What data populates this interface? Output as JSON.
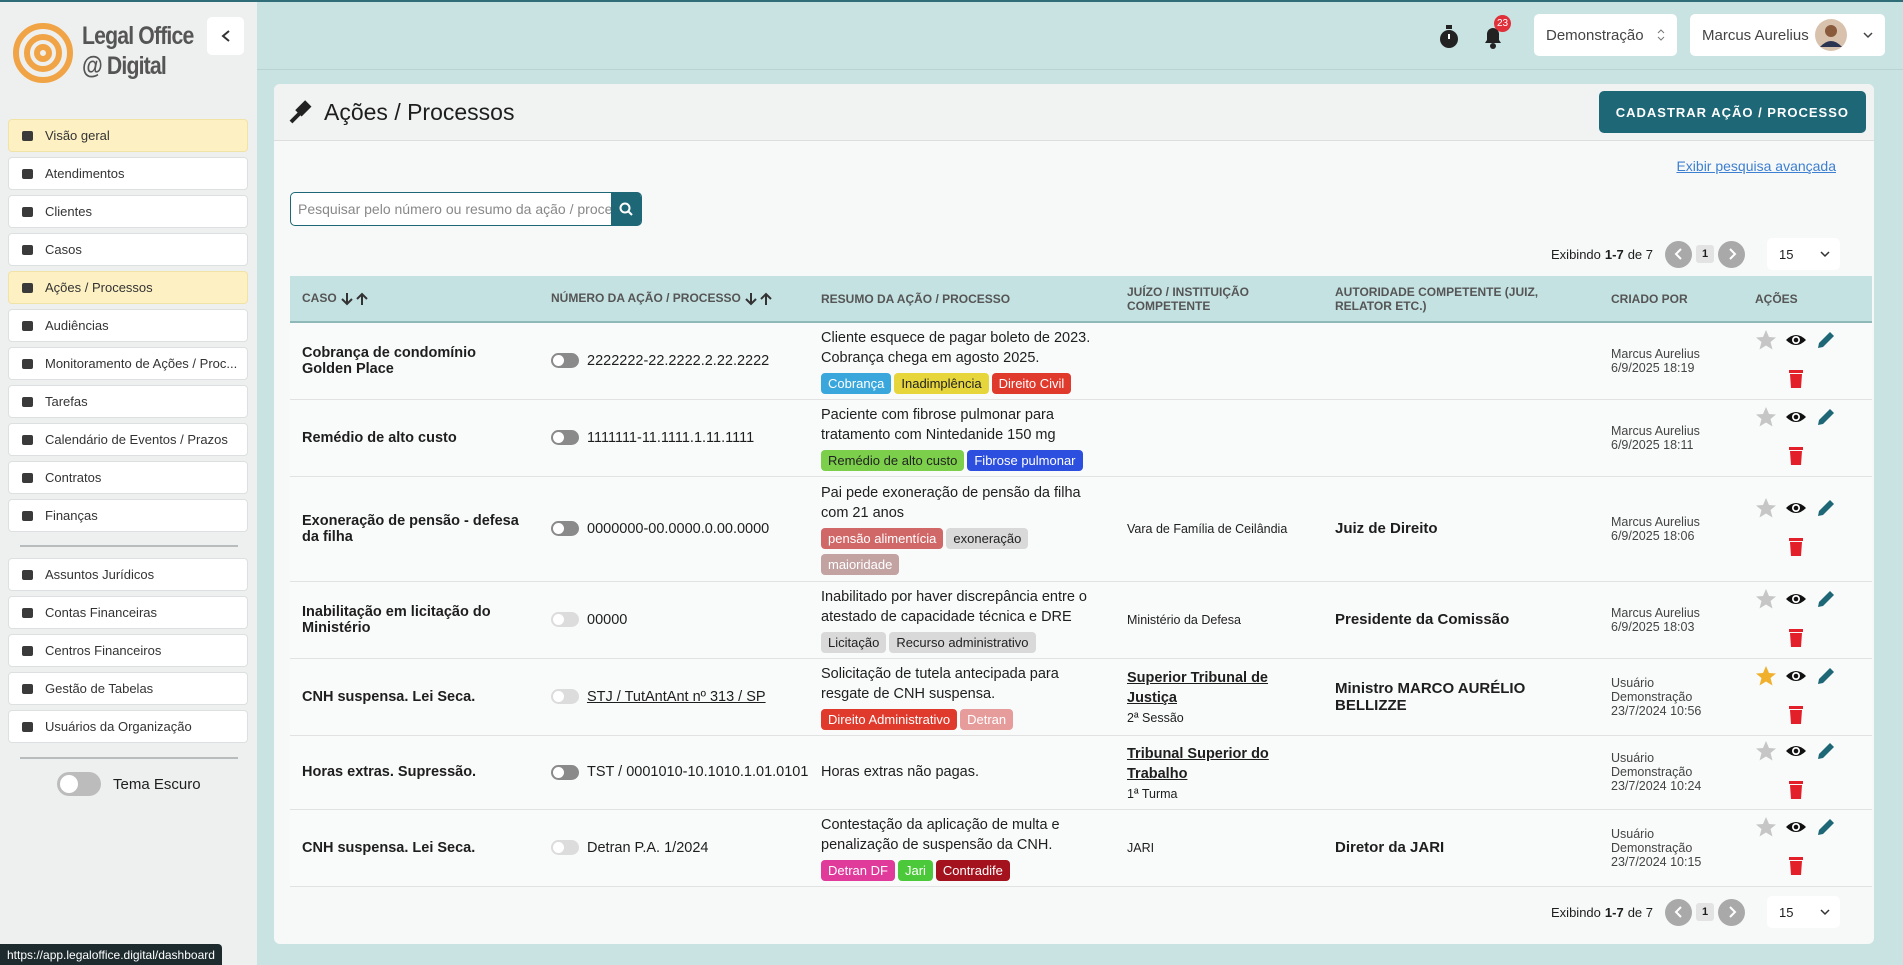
{
  "brand": {
    "line1": "Legal Office",
    "line2": "@ Digital"
  },
  "nav": {
    "main": [
      "Visão geral",
      "Atendimentos",
      "Clientes",
      "Casos",
      "Ações / Processos",
      "Audiências",
      "Monitoramento de Ações / Proc...",
      "Tarefas",
      "Calendário de Eventos / Prazos",
      "Contratos",
      "Finanças"
    ],
    "secondary": [
      "Assuntos Jurídicos",
      "Contas Financeiras",
      "Centros Financeiros",
      "Gestão de Tabelas",
      "Usuários da Organização"
    ],
    "active": [
      0,
      4
    ],
    "theme_toggle": "Tema Escuro"
  },
  "topbar": {
    "notifications": "23",
    "workspace": "Demonstração",
    "user": "Marcus Aurelius"
  },
  "page": {
    "title": "Ações / Processos",
    "create_button": "CADASTRAR AÇÃO / PROCESSO",
    "advanced_search": "Exibir pesquisa avançada",
    "search_placeholder": "Pesquisar pelo número ou resumo da ação / processo"
  },
  "pagination": {
    "prefix": "Exibindo",
    "range": "1-7",
    "suffix": "de 7",
    "page": "1",
    "page_size": "15"
  },
  "table": {
    "headers": [
      {
        "text": "CASO",
        "sortable": true
      },
      {
        "text": "NÚMERO DA AÇÃO / PROCESSO",
        "sortable": true
      },
      {
        "text": "RESUMO DA AÇÃO / PROCESSO",
        "sortable": false
      },
      {
        "text": "JUÍZO / INSTITUIÇÃO COMPETENTE",
        "sortable": false
      },
      {
        "text": "AUTORIDADE COMPETENTE (JUIZ, RELATOR ETC.)",
        "sortable": false
      },
      {
        "text": "CRIADO POR",
        "sortable": false
      },
      {
        "text": "AÇÕES",
        "sortable": false
      }
    ],
    "rows": [
      {
        "caso": "Cobrança de condomínio Golden Place",
        "toggle_on": true,
        "numero": "2222222-22.2222.2.22.2222",
        "numero_link": false,
        "resumo": "Cliente esquece de pagar boleto de 2023. Cobrança chega em agosto 2025.",
        "tags": [
          {
            "text": "Cobrança",
            "color": "#3aa7dc",
            "dark_text": false
          },
          {
            "text": "Inadimplência",
            "color": "#e6d63c",
            "dark_text": true
          },
          {
            "text": "Direito Civil",
            "color": "#df3a2c",
            "dark_text": false
          }
        ],
        "juizo": null,
        "juizo_link": false,
        "juizo_sub": null,
        "autoridade": null,
        "criado_por": "Marcus Aurelius",
        "criado_em": "6/9/2025 18:19",
        "starred": false
      },
      {
        "caso": "Remédio de alto custo",
        "toggle_on": true,
        "numero": "1111111-11.1111.1.11.1111",
        "numero_link": false,
        "resumo": "Paciente com fibrose pulmonar para tratamento com Nintedanide 150 mg",
        "tags": [
          {
            "text": "Remédio de alto custo",
            "color": "#7ccf4b",
            "dark_text": true
          },
          {
            "text": "Fibrose pulmonar",
            "color": "#2d4fdf",
            "dark_text": false
          }
        ],
        "juizo": null,
        "juizo_link": false,
        "juizo_sub": null,
        "autoridade": null,
        "criado_por": "Marcus Aurelius",
        "criado_em": "6/9/2025 18:11",
        "starred": false
      },
      {
        "caso": "Exoneração de pensão - defesa da filha",
        "toggle_on": true,
        "numero": "0000000-00.0000.0.00.0000",
        "numero_link": false,
        "resumo": "Pai pede exoneração de pensão da filha com 21 anos",
        "tags": [
          {
            "text": "pensão alimentícia",
            "color": "#d06868",
            "dark_text": false
          },
          {
            "text": "exoneração",
            "color": "#d9d9d9",
            "dark_text": true
          },
          {
            "text": "maioridade",
            "color": "#c3a2a2",
            "dark_text": false
          }
        ],
        "juizo": "Vara de Família de Ceilândia",
        "juizo_link": false,
        "juizo_sub": null,
        "autoridade": "Juiz de Direito",
        "criado_por": "Marcus Aurelius",
        "criado_em": "6/9/2025 18:06",
        "starred": false
      },
      {
        "caso": "Inabilitação em licitação do Ministério",
        "toggle_on": false,
        "numero": "00000",
        "numero_link": false,
        "resumo": "Inabilitado por haver discrepância entre o atestado de capacidade técnica e DRE",
        "tags": [
          {
            "text": "Licitação",
            "color": "#d9d9d9",
            "dark_text": true
          },
          {
            "text": "Recurso administrativo",
            "color": "#d9d9d9",
            "dark_text": true
          }
        ],
        "juizo": "Ministério da Defesa",
        "juizo_link": false,
        "juizo_sub": null,
        "autoridade": "Presidente da Comissão",
        "criado_por": "Marcus Aurelius",
        "criado_em": "6/9/2025 18:03",
        "starred": false
      },
      {
        "caso": "CNH suspensa. Lei Seca.",
        "toggle_on": false,
        "numero": "STJ / TutAntAnt nº 313 / SP",
        "numero_link": true,
        "resumo": "Solicitação de tutela antecipada para resgate de CNH suspensa.",
        "tags": [
          {
            "text": "Direito Administrativo",
            "color": "#df3a2c",
            "dark_text": false
          },
          {
            "text": "Detran",
            "color": "#e79c9c",
            "dark_text": false
          }
        ],
        "juizo": "Superior Tribunal de Justiça",
        "juizo_link": true,
        "juizo_sub": "2ª Sessão",
        "autoridade": "Ministro MARCO AURÉLIO BELLIZZE",
        "criado_por": "Usuário Demonstração",
        "criado_em": "23/7/2024 10:56",
        "starred": true
      },
      {
        "caso": "Horas extras. Supressão.",
        "toggle_on": true,
        "numero": "TST / 0001010-10.1010.1.01.0101",
        "numero_link": false,
        "resumo": "Horas extras não pagas.",
        "tags": [],
        "juizo": "Tribunal Superior do Trabalho",
        "juizo_link": true,
        "juizo_sub": "1ª Turma",
        "autoridade": null,
        "criado_por": "Usuário Demonstração",
        "criado_em": "23/7/2024 10:24",
        "starred": false
      },
      {
        "caso": "CNH suspensa. Lei Seca.",
        "toggle_on": false,
        "numero": "Detran P.A. 1/2024",
        "numero_link": false,
        "resumo": "Contestação da aplicação de multa e penalização de suspensão da CNH.",
        "tags": [
          {
            "text": "Detran DF",
            "color": "#e03a9b",
            "dark_text": false
          },
          {
            "text": "Jari",
            "color": "#4cc93a",
            "dark_text": false
          },
          {
            "text": "Contradife",
            "color": "#a3121d",
            "dark_text": false
          }
        ],
        "juizo": "JARI",
        "juizo_link": false,
        "juizo_sub": null,
        "autoridade": "Diretor da JARI",
        "criado_por": "Usuário Demonstração",
        "criado_em": "23/7/2024 10:15",
        "starred": false
      }
    ]
  },
  "status_url": "https://app.legaloffice.digital/dashboard"
}
